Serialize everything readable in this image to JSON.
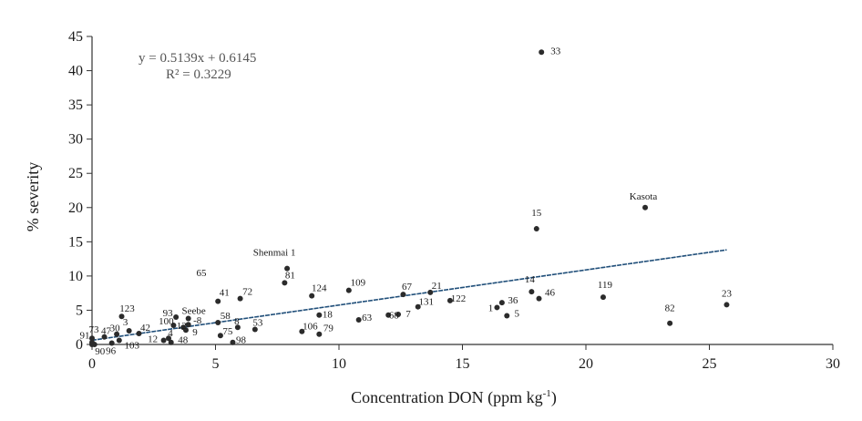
{
  "chart_data": {
    "type": "scatter",
    "title": "",
    "xlabel": "Concentration DON (ppm kg",
    "xlabel_sup": "-1",
    "xlabel_end": ")",
    "ylabel": "% severity",
    "xlim": [
      0,
      30
    ],
    "ylim": [
      0,
      45
    ],
    "x_ticks": [
      0,
      5,
      10,
      15,
      20,
      25,
      30
    ],
    "y_ticks": [
      0,
      5,
      10,
      15,
      20,
      25,
      30,
      35,
      40,
      45
    ],
    "grid": false,
    "trendline": {
      "type": "linear",
      "slope": 0.5139,
      "intercept": 0.6145,
      "x_range": [
        0,
        25.7
      ],
      "equation": "y = 0.5139x + 0.6145",
      "r_squared": "R² = 0.3229",
      "color": "#1f4e79"
    },
    "marker_color": "#2b2b2b",
    "points": [
      {
        "label": "33",
        "x": 18.2,
        "y": 42.7
      },
      {
        "label": "Kasota",
        "x": 22.4,
        "y": 20.0
      },
      {
        "label": "15",
        "x": 18.0,
        "y": 16.9
      },
      {
        "label": "Shenmai 1",
        "x": 7.9,
        "y": 11.1
      },
      {
        "label": "81",
        "x": 7.8,
        "y": 9.0
      },
      {
        "label": "65",
        "x": 0.0,
        "y": 0.0
      },
      {
        "label": "109",
        "x": 10.4,
        "y": 7.9
      },
      {
        "label": "124",
        "x": 8.9,
        "y": 7.1
      },
      {
        "label": "72",
        "x": 6.0,
        "y": 6.7
      },
      {
        "label": "41",
        "x": 5.1,
        "y": 6.3
      },
      {
        "label": "67",
        "x": 12.6,
        "y": 7.3
      },
      {
        "label": "21",
        "x": 13.7,
        "y": 7.6
      },
      {
        "label": "122",
        "x": 14.5,
        "y": 6.4
      },
      {
        "label": "131",
        "x": 13.2,
        "y": 5.5
      },
      {
        "label": "14",
        "x": 17.8,
        "y": 7.7
      },
      {
        "label": "46",
        "x": 18.1,
        "y": 6.7
      },
      {
        "label": "36",
        "x": 16.6,
        "y": 6.1
      },
      {
        "label": "1",
        "x": 16.4,
        "y": 5.4
      },
      {
        "label": "5",
        "x": 16.8,
        "y": 4.2
      },
      {
        "label": "119",
        "x": 20.7,
        "y": 6.9
      },
      {
        "label": "23",
        "x": 25.7,
        "y": 5.8
      },
      {
        "label": "82",
        "x": 23.4,
        "y": 3.1
      },
      {
        "label": "68",
        "x": 12.0,
        "y": 4.3
      },
      {
        "label": "7",
        "x": 12.4,
        "y": 4.4
      },
      {
        "label": "63",
        "x": 10.8,
        "y": 3.6
      },
      {
        "label": "18",
        "x": 9.2,
        "y": 4.3
      },
      {
        "label": "106",
        "x": 8.5,
        "y": 1.9
      },
      {
        "label": "79",
        "x": 9.2,
        "y": 1.5
      },
      {
        "label": "53",
        "x": 6.6,
        "y": 2.2
      },
      {
        "label": "8",
        "x": 5.9,
        "y": 2.5
      },
      {
        "label": "58",
        "x": 5.1,
        "y": 3.2
      },
      {
        "label": "75",
        "x": 5.2,
        "y": 1.3
      },
      {
        "label": "98",
        "x": 5.7,
        "y": 0.3
      },
      {
        "label": "Seebe",
        "x": 3.9,
        "y": 3.8
      },
      {
        "label": "93",
        "x": 3.4,
        "y": 4.0
      },
      {
        "label": "100",
        "x": 3.3,
        "y": 2.8
      },
      {
        "label": "12",
        "x": 3.7,
        "y": 2.5
      },
      {
        "label": "-8",
        "x": 3.9,
        "y": 2.9
      },
      {
        "label": "9",
        "x": 3.8,
        "y": 2.1
      },
      {
        "label": "4",
        "x": 3.1,
        "y": 0.9
      },
      {
        "label": "12",
        "x": 2.9,
        "y": 0.6
      },
      {
        "label": "48",
        "x": 3.2,
        "y": 0.3
      },
      {
        "label": "123",
        "x": 1.2,
        "y": 4.1
      },
      {
        "label": "3",
        "x": 1.5,
        "y": 2.0
      },
      {
        "label": "30",
        "x": 1.0,
        "y": 1.5
      },
      {
        "label": "42",
        "x": 1.9,
        "y": 1.6
      },
      {
        "label": "47",
        "x": 0.5,
        "y": 1.1
      },
      {
        "label": "73",
        "x": 0.0,
        "y": 0.9
      },
      {
        "label": "91",
        "x": 0.0,
        "y": 0.3
      },
      {
        "label": "90",
        "x": 0.1,
        "y": 0.0
      },
      {
        "label": "96",
        "x": 0.8,
        "y": 0.2
      },
      {
        "label": "103",
        "x": 1.1,
        "y": 0.6
      }
    ]
  }
}
